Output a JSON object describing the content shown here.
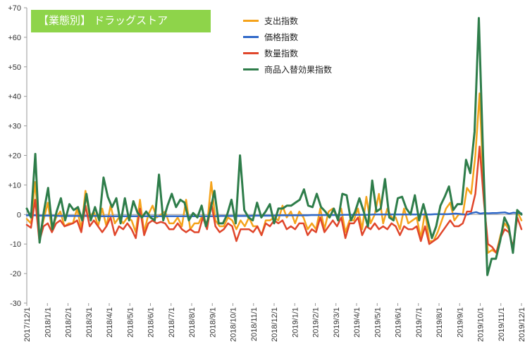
{
  "badge": {
    "text": "【業態別】 ドラッグストア",
    "color": "#8ed44a"
  },
  "colors": {
    "spending": "#f5a31b",
    "price": "#2f68c8",
    "quantity": "#e0462b",
    "mix": "#2e7d4a",
    "axis": "#999999",
    "text": "#333333"
  },
  "chart_data": {
    "type": "line",
    "title": "",
    "xlabel": "",
    "ylabel": "",
    "ylim": [
      -30,
      70
    ],
    "yticks": [
      70,
      60,
      50,
      40,
      30,
      20,
      10,
      0,
      -10,
      -20,
      -30
    ],
    "ytick_labels": [
      "+70",
      "+60",
      "+50",
      "+40",
      "+30",
      "+20",
      "+10",
      "0",
      "-10",
      "-20",
      "-30"
    ],
    "grid": false,
    "legend_position": "top-center",
    "x_tick_labels": [
      "2017/12/1",
      "2018/1/1",
      "2018/2/1",
      "2018/3/1",
      "2018/4/1",
      "2018/5/1",
      "2018/6/1",
      "2018/7/1",
      "2018/8/1",
      "2018/9/1",
      "2018/10/1",
      "2018/11/1",
      "2018/12/1",
      "2019/1/1",
      "2019/2/1",
      "2019/3/1",
      "2019/4/1",
      "2019/5/1",
      "2019/6/1",
      "2019/7/1",
      "2019/8/1",
      "2019/9/1",
      "2019/10/1",
      "2019/11/1",
      "2019/12/1"
    ],
    "series": [
      {
        "name": "支出指数",
        "color": "#f5a31b",
        "values": [
          -1.5,
          -3,
          11,
          -7,
          -2,
          4,
          -5,
          -1,
          1,
          -4,
          -3,
          -3,
          2,
          -5,
          8,
          -1,
          1,
          -4,
          2,
          -4,
          3,
          -3,
          -1,
          -3,
          -1,
          -2,
          -6,
          5,
          -6,
          0,
          3,
          -1,
          0,
          1,
          -3,
          -3,
          -1,
          -4,
          5,
          -5,
          -3,
          -3,
          0,
          -4,
          11,
          -2,
          -4,
          -4,
          -1,
          -2,
          -5,
          -2,
          -4,
          -1,
          -4,
          -4,
          -7,
          -2,
          -2,
          -1,
          -2,
          3,
          -1,
          1,
          -3,
          1,
          -1,
          -5,
          -3,
          -5,
          2,
          -5,
          1,
          2,
          -1,
          2,
          -6,
          -2,
          -2,
          2,
          -5,
          6,
          -3,
          0,
          7,
          -3,
          2,
          -1,
          -1,
          -5,
          2,
          -3,
          -2,
          -1,
          -8,
          1,
          -9,
          -9,
          -6,
          -2,
          2,
          4,
          -2,
          0,
          0,
          9,
          7,
          20,
          41,
          7,
          -13,
          -12,
          -13,
          -7,
          -3,
          -5,
          -12,
          1,
          -2
        ]
      },
      {
        "name": "価格指数",
        "color": "#2f68c8",
        "values": [
          -0.3,
          -0.3,
          -0.3,
          -0.4,
          -0.4,
          -0.4,
          -0.4,
          -0.4,
          -0.5,
          -0.5,
          -0.5,
          -0.5,
          -0.5,
          -0.5,
          -0.5,
          -0.5,
          -0.5,
          -0.5,
          -0.6,
          -0.6,
          -0.6,
          -0.6,
          -0.6,
          -0.6,
          -0.6,
          -0.6,
          -0.6,
          -0.6,
          -0.6,
          -0.6,
          -0.6,
          -0.6,
          -0.6,
          -0.6,
          -0.6,
          -0.6,
          -0.6,
          -0.6,
          -0.6,
          -0.6,
          -0.6,
          -0.6,
          -0.6,
          -0.6,
          -0.6,
          -0.6,
          -0.6,
          -0.5,
          -0.5,
          -0.5,
          -0.5,
          -0.5,
          -0.5,
          -0.5,
          -0.5,
          -0.4,
          -0.4,
          -0.4,
          -0.4,
          -0.4,
          -0.4,
          -0.3,
          -0.3,
          -0.3,
          -0.3,
          -0.3,
          -0.3,
          -0.3,
          -0.3,
          -0.2,
          -0.2,
          -0.2,
          -0.2,
          -0.2,
          -0.2,
          -0.2,
          -0.2,
          -0.1,
          -0.1,
          -0.1,
          -0.1,
          -0.1,
          -0.1,
          -0.1,
          0,
          0,
          0,
          0,
          0,
          0,
          0,
          0,
          0,
          0,
          0,
          0,
          0,
          0,
          0,
          0.1,
          0.1,
          0.1,
          0.1,
          0.2,
          0.3,
          0.2,
          0,
          0,
          0.5,
          0.8,
          0.3,
          0.5,
          0.4,
          0.5,
          0.5,
          0.6,
          0.7,
          0.3,
          0.6,
          0.5,
          0.4
        ]
      },
      {
        "name": "数量指数",
        "color": "#e0462b",
        "values": [
          -3.5,
          -4.5,
          5,
          -9,
          -4,
          -3,
          -6,
          -3,
          -2,
          -4,
          -3.5,
          -3,
          -2,
          -6,
          3,
          -4,
          -2,
          -4,
          -6,
          -4,
          -1,
          -7,
          -4,
          -5,
          -3,
          -5,
          -8,
          2,
          -7,
          -3,
          -2,
          -3,
          -2.5,
          -3,
          -5,
          -5,
          -3,
          -5,
          -6,
          -5,
          -6,
          -6,
          -1,
          -5,
          4,
          -4,
          -6,
          -5,
          -3,
          -4,
          -9,
          -5,
          -5,
          -5,
          -6,
          -4,
          -7,
          -3,
          -4,
          -2,
          -3,
          -2,
          -5,
          -4,
          -5,
          -3,
          -3,
          -7,
          -5,
          -6,
          -1,
          -6,
          -4,
          -2,
          -4,
          -1,
          -8,
          -3,
          -3,
          -1,
          -7,
          -4,
          -5,
          -3,
          -5,
          -4,
          -5,
          -3,
          -4,
          -7,
          -4,
          -5,
          -5,
          -4,
          -9,
          -4,
          -10,
          -9,
          -8,
          -6,
          -4,
          -2,
          -4,
          -4,
          -3,
          1,
          1,
          7,
          23,
          5,
          -10,
          -11,
          -13,
          -8,
          -5,
          -6,
          -11,
          -1,
          -5
        ]
      },
      {
        "name": "商品入替効果指数",
        "color": "#2e7d4a",
        "values": [
          2,
          -1,
          20.5,
          -9.5,
          1,
          9,
          -5,
          1,
          5.5,
          -2,
          3.5,
          1.5,
          2.5,
          -2,
          7,
          -2,
          2.5,
          -2,
          12.5,
          6,
          2.5,
          5.5,
          -3,
          5.5,
          -2,
          4.5,
          0.5,
          -1,
          1,
          -1,
          -2,
          13.5,
          -2,
          3,
          7,
          2.5,
          5,
          4,
          -2,
          0.5,
          -1,
          3,
          -4,
          1,
          8,
          -3,
          -3,
          0,
          5,
          -3,
          20,
          1.5,
          -1,
          -2,
          4,
          -1,
          1,
          3.5,
          -3,
          2,
          2,
          3,
          3,
          4,
          5,
          8.5,
          3,
          2.5,
          7,
          2.5,
          1,
          -1,
          2,
          -2,
          7,
          6.5,
          -2,
          1,
          5.5,
          1,
          -4,
          11.5,
          1,
          2,
          12,
          -1,
          -2,
          5.5,
          6,
          2,
          0,
          6.5,
          -2,
          3.5,
          -2,
          -8,
          -4,
          3,
          6,
          9.5,
          1.5,
          3.5,
          3.5,
          18.5,
          14,
          28,
          66.5,
          20,
          -20.5,
          -15,
          -15,
          -9,
          -1,
          -4,
          -13,
          1.5,
          0
        ]
      }
    ]
  }
}
